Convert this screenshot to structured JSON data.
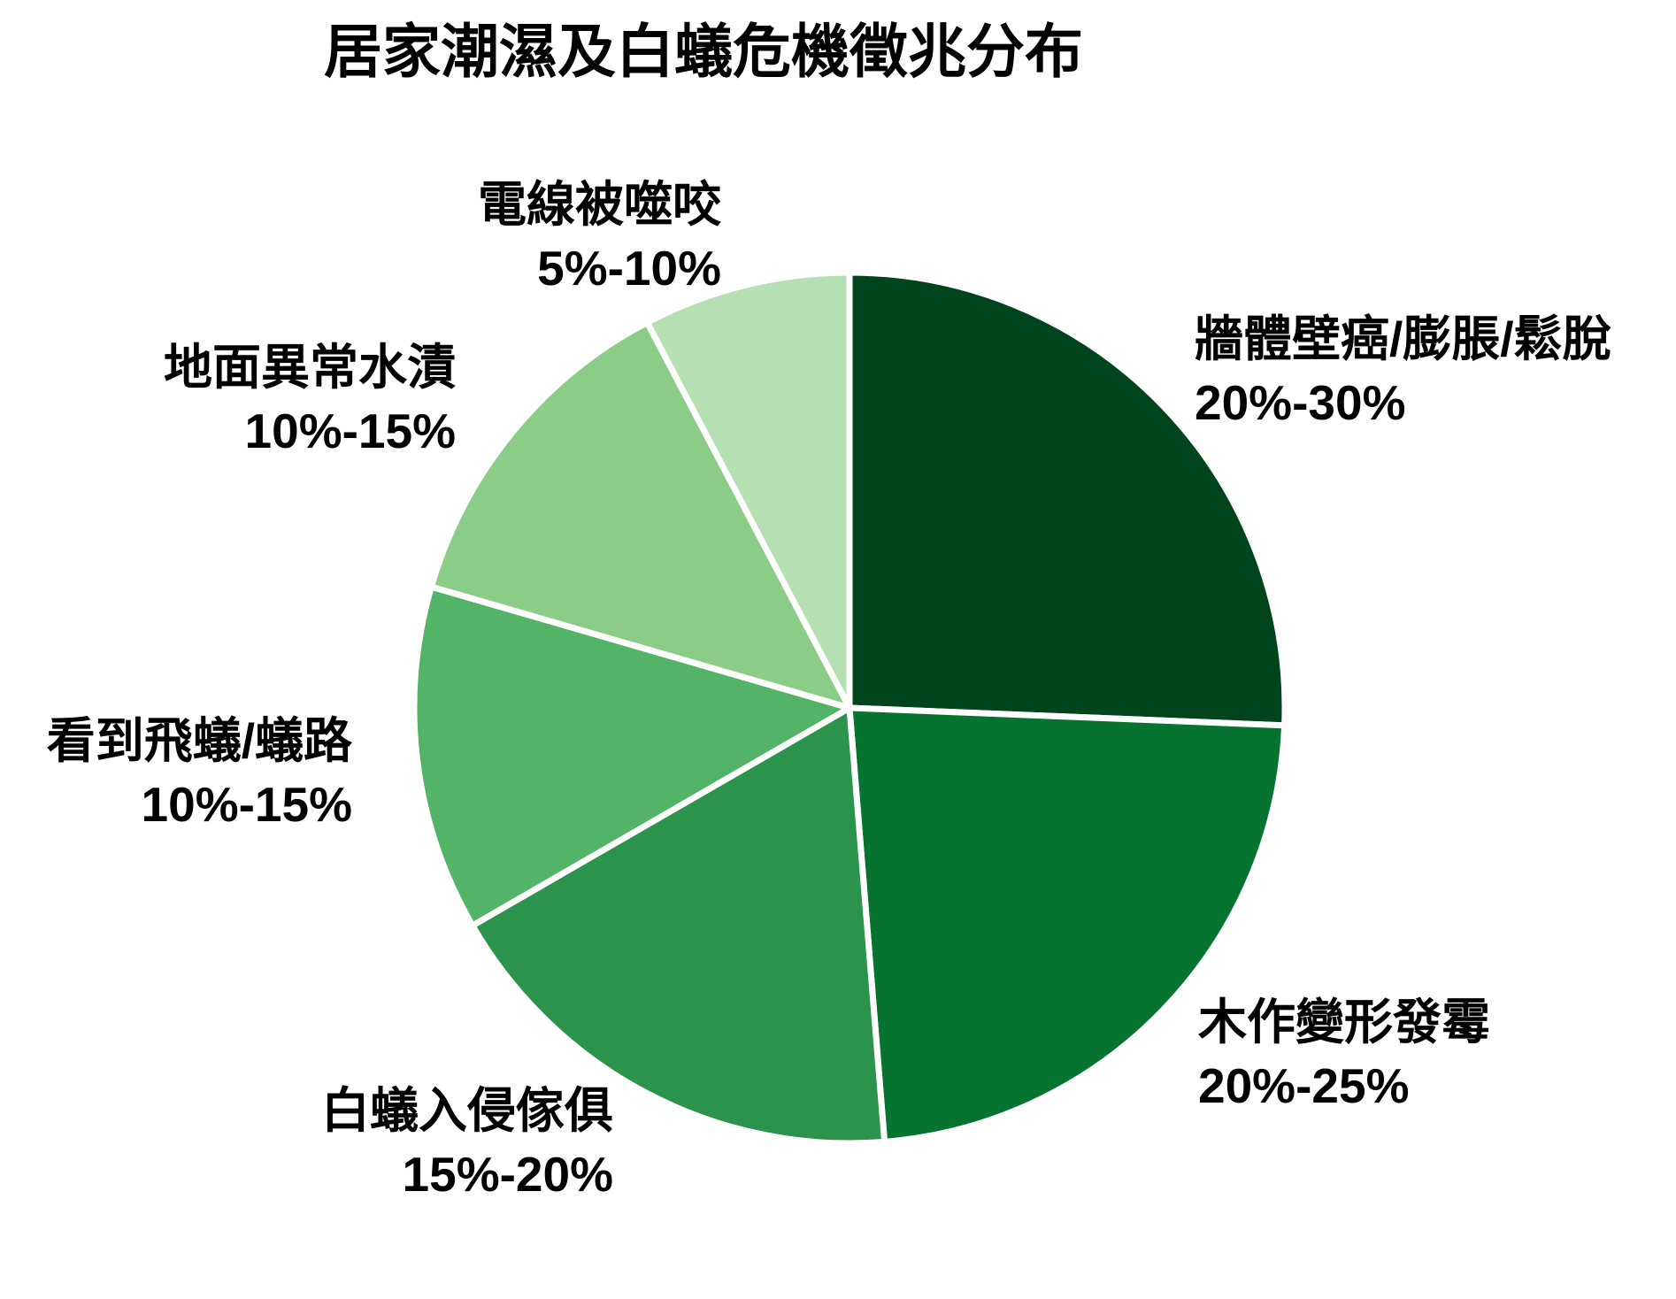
{
  "chart_data": {
    "type": "pie",
    "title": "居家潮濕及白蟻危機徵兆分布",
    "start_angle_deg": 0,
    "direction": "clockwise",
    "labels_position": "outside",
    "slice_gap_color": "#ffffff",
    "background_color": "#ffffff",
    "slices": [
      {
        "label": "牆體壁癌/膨脹/鬆脫",
        "range": "20%-30%",
        "value_mid_pct": 25,
        "color": "#00441c"
      },
      {
        "label": "木作變形發霉",
        "range": "20%-25%",
        "value_mid_pct": 22.5,
        "color": "#077331"
      },
      {
        "label": "白蟻入侵傢俱",
        "range": "15%-20%",
        "value_mid_pct": 17.5,
        "color": "#2b934c"
      },
      {
        "label": "看到飛蟻/蟻路",
        "range": "10%-15%",
        "value_mid_pct": 12.5,
        "color": "#53b366"
      },
      {
        "label": "地面異常水漬",
        "range": "10%-15%",
        "value_mid_pct": 12.5,
        "color": "#8bcc87"
      },
      {
        "label": "電線被噬咬",
        "range": "5%-10%",
        "value_mid_pct": 7.5,
        "color": "#b6e0b3"
      }
    ]
  }
}
